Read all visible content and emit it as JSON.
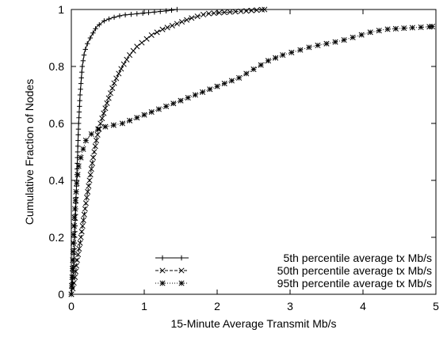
{
  "chart_data": {
    "type": "line",
    "xlabel": "15-Minute Average Transmit Mb/s",
    "ylabel": "Cumulative Fraction of Nodes",
    "xlim": [
      0,
      5
    ],
    "ylim": [
      0,
      1
    ],
    "xticks": [
      "0",
      "1",
      "2",
      "3",
      "4",
      "5"
    ],
    "yticks": [
      "0",
      "0.2",
      "0.4",
      "0.6",
      "0.8",
      "1"
    ],
    "grid": false,
    "legend_position": "bottom-right",
    "series": [
      {
        "name": "5th percentile average tx Mb/s",
        "line_style": "solid",
        "marker": "plus",
        "points": [
          [
            0,
            0
          ],
          [
            0.02,
            0.05
          ],
          [
            0.04,
            0.15
          ],
          [
            0.06,
            0.3
          ],
          [
            0.08,
            0.45
          ],
          [
            0.1,
            0.6
          ],
          [
            0.12,
            0.7
          ],
          [
            0.15,
            0.8
          ],
          [
            0.18,
            0.85
          ],
          [
            0.22,
            0.88
          ],
          [
            0.28,
            0.91
          ],
          [
            0.35,
            0.94
          ],
          [
            0.45,
            0.96
          ],
          [
            0.55,
            0.97
          ],
          [
            0.7,
            0.98
          ],
          [
            0.9,
            0.985
          ],
          [
            1.1,
            0.99
          ],
          [
            1.3,
            0.995
          ],
          [
            1.45,
            1.0
          ]
        ]
      },
      {
        "name": "50th percentile average tx Mb/s",
        "line_style": "dashed",
        "marker": "cross",
        "points": [
          [
            0,
            0
          ],
          [
            0.02,
            0.02
          ],
          [
            0.05,
            0.06
          ],
          [
            0.08,
            0.12
          ],
          [
            0.12,
            0.18
          ],
          [
            0.16,
            0.25
          ],
          [
            0.2,
            0.32
          ],
          [
            0.25,
            0.4
          ],
          [
            0.3,
            0.48
          ],
          [
            0.35,
            0.55
          ],
          [
            0.4,
            0.6
          ],
          [
            0.5,
            0.68
          ],
          [
            0.6,
            0.75
          ],
          [
            0.7,
            0.8
          ],
          [
            0.8,
            0.84
          ],
          [
            0.9,
            0.87
          ],
          [
            1.0,
            0.89
          ],
          [
            1.1,
            0.91
          ],
          [
            1.25,
            0.93
          ],
          [
            1.45,
            0.95
          ],
          [
            1.65,
            0.97
          ],
          [
            1.85,
            0.985
          ],
          [
            2.1,
            0.99
          ],
          [
            2.4,
            0.995
          ],
          [
            2.65,
            1.0
          ]
        ]
      },
      {
        "name": "95th percentile average tx Mb/s",
        "line_style": "dotted",
        "marker": "star",
        "points": [
          [
            0,
            0
          ],
          [
            0.01,
            0.05
          ],
          [
            0.02,
            0.12
          ],
          [
            0.03,
            0.2
          ],
          [
            0.05,
            0.3
          ],
          [
            0.07,
            0.38
          ],
          [
            0.1,
            0.45
          ],
          [
            0.15,
            0.5
          ],
          [
            0.2,
            0.54
          ],
          [
            0.3,
            0.57
          ],
          [
            0.4,
            0.585
          ],
          [
            0.5,
            0.59
          ],
          [
            0.7,
            0.6
          ],
          [
            0.9,
            0.62
          ],
          [
            1.1,
            0.64
          ],
          [
            1.3,
            0.66
          ],
          [
            1.5,
            0.68
          ],
          [
            1.7,
            0.7
          ],
          [
            1.9,
            0.72
          ],
          [
            2.1,
            0.74
          ],
          [
            2.3,
            0.76
          ],
          [
            2.5,
            0.79
          ],
          [
            2.7,
            0.82
          ],
          [
            2.9,
            0.84
          ],
          [
            3.1,
            0.855
          ],
          [
            3.3,
            0.87
          ],
          [
            3.5,
            0.88
          ],
          [
            3.7,
            0.89
          ],
          [
            3.9,
            0.905
          ],
          [
            4.1,
            0.92
          ],
          [
            4.3,
            0.93
          ],
          [
            4.6,
            0.935
          ],
          [
            4.95,
            0.94
          ]
        ]
      }
    ]
  }
}
